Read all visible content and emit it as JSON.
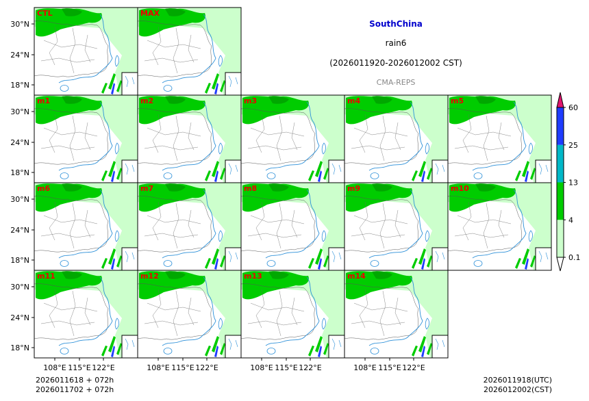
{
  "chart_data": {
    "type": "heatmap",
    "title": "SouthChina",
    "variable": "rain6",
    "period": "(2026011920-2026012002 CST)",
    "source": "CMA-REPS",
    "panels": [
      {
        "label": "CTL",
        "row": 0,
        "col": 0
      },
      {
        "label": "MAX",
        "row": 0,
        "col": 1
      },
      {
        "label": "m1",
        "row": 1,
        "col": 0
      },
      {
        "label": "m2",
        "row": 1,
        "col": 1
      },
      {
        "label": "m3",
        "row": 1,
        "col": 2
      },
      {
        "label": "m4",
        "row": 1,
        "col": 3
      },
      {
        "label": "m5",
        "row": 1,
        "col": 4
      },
      {
        "label": "m6",
        "row": 2,
        "col": 0
      },
      {
        "label": "m7",
        "row": 2,
        "col": 1
      },
      {
        "label": "m8",
        "row": 2,
        "col": 2
      },
      {
        "label": "m9",
        "row": 2,
        "col": 3
      },
      {
        "label": "m10",
        "row": 2,
        "col": 4
      },
      {
        "label": "m11",
        "row": 3,
        "col": 0
      },
      {
        "label": "m12",
        "row": 3,
        "col": 1
      },
      {
        "label": "m13",
        "row": 3,
        "col": 2
      },
      {
        "label": "m14",
        "row": 3,
        "col": 3
      }
    ],
    "lat_ticks": [
      "30°N",
      "24°N",
      "18°N"
    ],
    "lon_ticks": [
      "108°E",
      "115°E",
      "122°E"
    ],
    "colorbar": {
      "levels": [
        "0.1",
        "4",
        "13",
        "25",
        "60"
      ],
      "colors": [
        "#ffffff",
        "#ccffcc",
        "#00cc00",
        "#00b8c8",
        "#1f3cff",
        "#e0146e"
      ]
    },
    "init_lines": [
      "2026011618  +  072h",
      "2026011702  +  072h"
    ],
    "valid_lines": [
      "2026011918(UTC)",
      "2026012002(CST)"
    ]
  },
  "colors": {
    "title": "#0000cc",
    "panel_label": "#ee0000",
    "source": "#888888",
    "coast": "#2b8fd8",
    "light_rain": "#ccffcc",
    "moderate_rain": "#00cc00",
    "heavy_rain": "#00b8c8",
    "rainstorm": "#1f3cff",
    "extreme": "#e0146e"
  }
}
